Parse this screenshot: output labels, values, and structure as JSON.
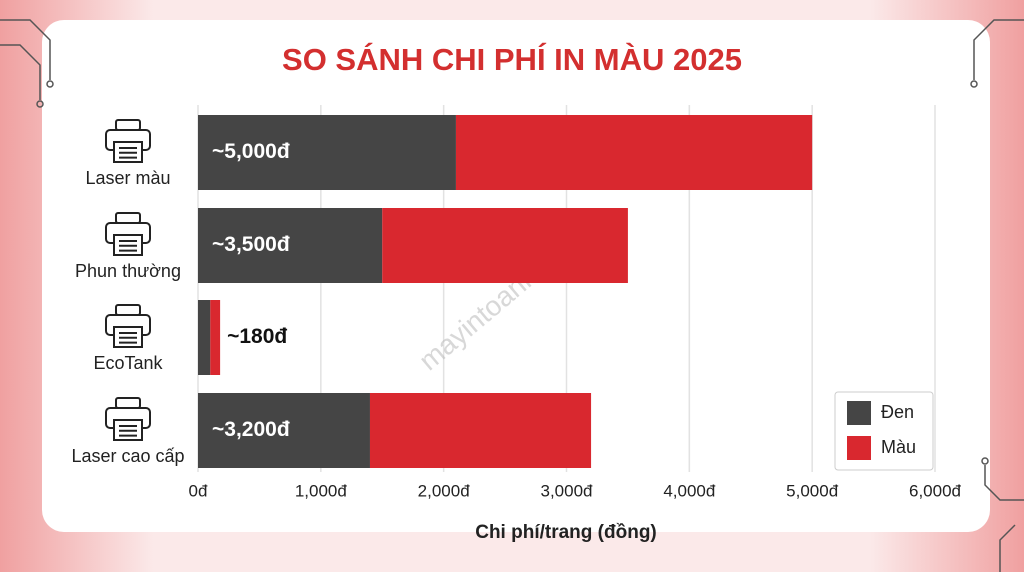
{
  "chart_data": {
    "type": "stacked-barh",
    "title": "SO SÁNH CHI PHÍ IN MÀU 2025",
    "xlabel": "Chi phí/trang (đồng)",
    "watermark": "mayintoanhan.com",
    "categories": [
      "Laser màu",
      "Phun thường",
      "EcoTank",
      "Laser cao cấp"
    ],
    "series": [
      {
        "name": "Đen",
        "color": "#454545",
        "values": [
          2100,
          1500,
          100,
          1400
        ]
      },
      {
        "name": "Màu",
        "color": "#d9282f",
        "values": [
          2900,
          2000,
          80,
          1800
        ]
      }
    ],
    "totals": [
      5000,
      3500,
      180,
      3200
    ],
    "total_labels": [
      "~5,000đ",
      "~3,500đ",
      "~180đ",
      "~3,200đ"
    ],
    "xlim": [
      0,
      6000
    ],
    "xticks": [
      {
        "value": 0,
        "label": "0đ"
      },
      {
        "value": 1000,
        "label": "1,000đ"
      },
      {
        "value": 2000,
        "label": "2,000đ"
      },
      {
        "value": 3000,
        "label": "3,000đ"
      },
      {
        "value": 4000,
        "label": "4,000đ"
      },
      {
        "value": 5000,
        "label": "5,000đ"
      },
      {
        "value": 6000,
        "label": "6,000đ"
      }
    ],
    "grid": true,
    "legend": "lower right"
  }
}
